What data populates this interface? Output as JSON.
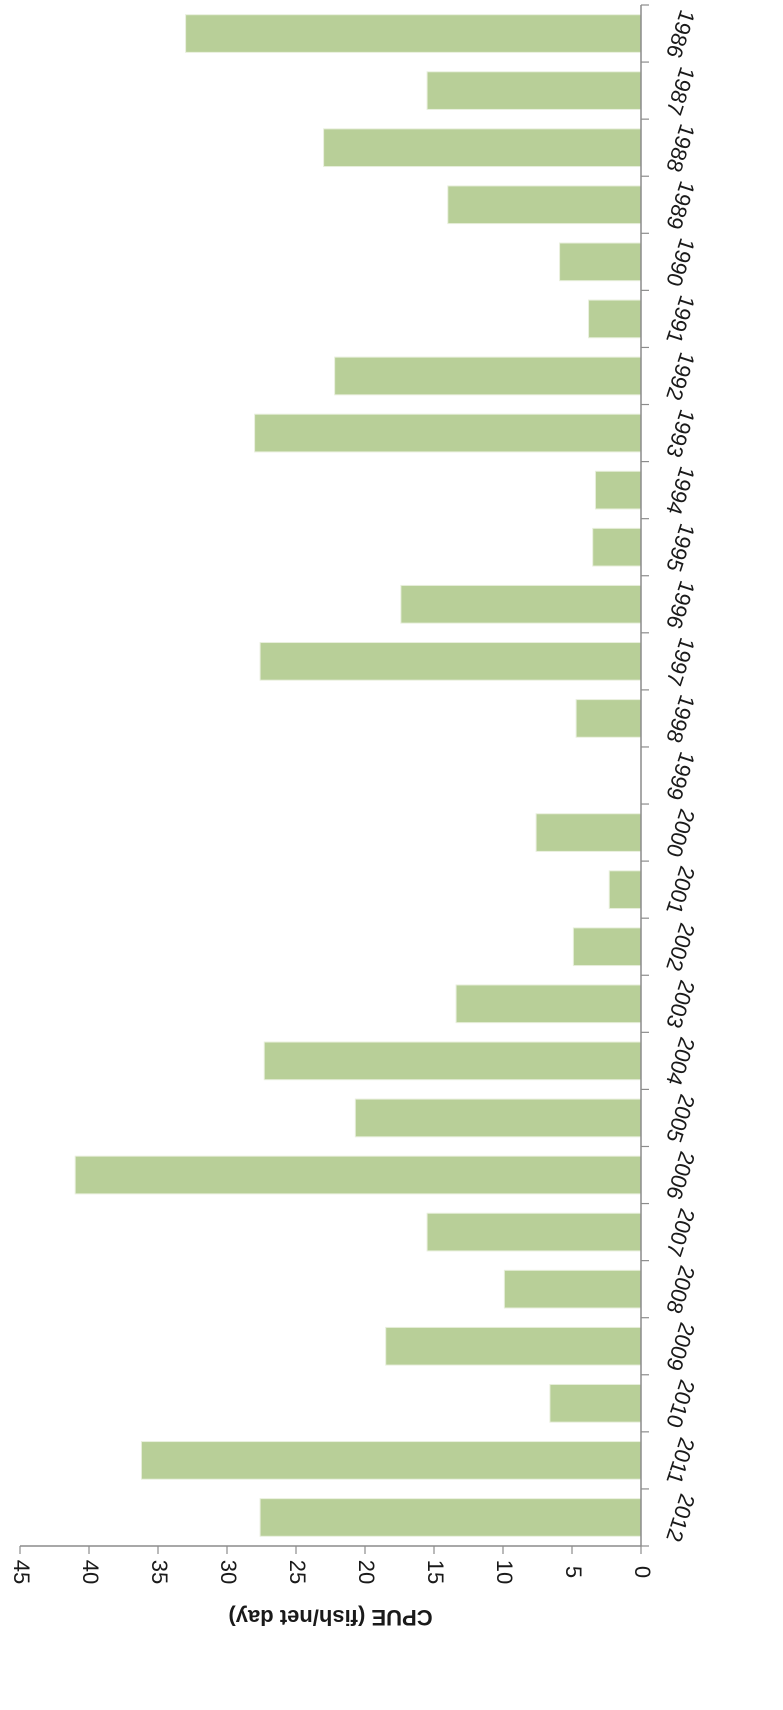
{
  "chart_data": {
    "type": "bar",
    "orientation": "horizontal",
    "categories": [
      "1986",
      "1987",
      "1988",
      "1989",
      "1990",
      "1991",
      "1992",
      "1993",
      "1994",
      "1995",
      "1996",
      "1997",
      "1998",
      "1999",
      "2000",
      "2001",
      "2002",
      "2003",
      "2004",
      "2005",
      "2006",
      "2007",
      "2008",
      "2009",
      "2010",
      "2011",
      "2012"
    ],
    "values": [
      33.0,
      15.5,
      23.0,
      14.0,
      5.9,
      3.8,
      22.2,
      28.0,
      3.3,
      3.5,
      17.4,
      27.6,
      4.7,
      0,
      7.6,
      2.3,
      4.9,
      13.4,
      27.3,
      20.7,
      41.0,
      15.5,
      9.9,
      18.5,
      6.6,
      36.2,
      27.6
    ],
    "xlabel": "",
    "ylabel": "CPUE (fish/net day)",
    "ylim": [
      0,
      45
    ],
    "ticks": [
      "0",
      "5",
      "10",
      "15",
      "20",
      "25",
      "30",
      "35",
      "40",
      "45"
    ],
    "bar_color": "#b8cf98",
    "grid": false,
    "display_rotation": "180deg"
  }
}
